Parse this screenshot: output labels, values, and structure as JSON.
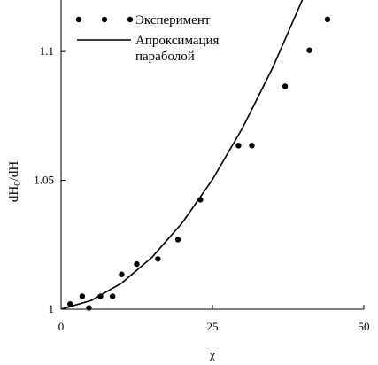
{
  "chart_data": {
    "type": "scatter",
    "xlabel": "χ",
    "ylabel_main": "dH",
    "ylabel_sub": "0",
    "ylabel_rest": "/dH",
    "xlim": [
      0,
      50
    ],
    "ylim": [
      1.0,
      1.12
    ],
    "x_ticks": [
      0,
      25,
      50
    ],
    "x_tick_labels": [
      "0",
      "25",
      "50"
    ],
    "y_ticks": [
      1.0,
      1.05,
      1.1
    ],
    "y_tick_labels": [
      "1",
      "1.05",
      "1.1"
    ],
    "grid": false,
    "legend_position": "top-left",
    "series": [
      {
        "name": "Эксперимент",
        "kind": "points",
        "color": "#000000",
        "x": [
          1.5,
          3.5,
          4.6,
          6.5,
          8.5,
          10.0,
          12.5,
          16.0,
          19.3,
          23.0,
          29.3,
          31.5,
          37.0,
          41.0,
          44.0
        ],
        "y": [
          1.002,
          1.005,
          1.0005,
          1.005,
          1.005,
          1.0135,
          1.0175,
          1.0195,
          1.027,
          1.0425,
          1.0635,
          1.0635,
          1.0865,
          1.1005,
          1.1125
        ]
      },
      {
        "name": "Апроксимация параболой",
        "name_line1": "Апроксимация",
        "name_line2": "параболой",
        "kind": "line",
        "color": "#000000",
        "x": [
          0,
          5,
          10,
          15,
          20,
          25,
          30,
          35,
          40,
          45.5
        ],
        "y": [
          1.0,
          1.0034,
          1.0101,
          1.0201,
          1.0335,
          1.0503,
          1.0705,
          1.094,
          1.1209,
          1.1544
        ]
      }
    ]
  }
}
